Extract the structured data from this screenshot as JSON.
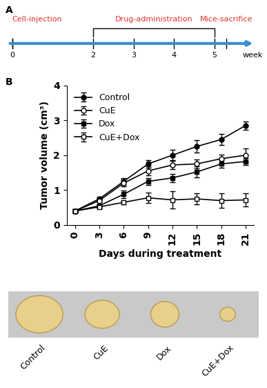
{
  "chart_data": {
    "type": "line",
    "x": [
      0,
      3,
      6,
      9,
      12,
      15,
      18,
      21
    ],
    "xlabel": "Days during treatment",
    "ylabel": "Tumor volume (cm³)",
    "xlim": [
      -1,
      22
    ],
    "xticks": [
      0,
      3,
      6,
      9,
      12,
      15,
      18,
      21
    ],
    "ylim": [
      0,
      4
    ],
    "yticks": [
      0,
      1,
      2,
      3,
      4
    ],
    "legend": "upper left",
    "series": [
      {
        "name": "Control",
        "color": "#000000",
        "marker": "circle",
        "values": [
          0.4,
          0.75,
          1.25,
          1.75,
          2.0,
          2.25,
          2.45,
          2.85
        ],
        "errors": [
          0.05,
          0.05,
          0.1,
          0.1,
          0.15,
          0.18,
          0.15,
          0.12
        ]
      },
      {
        "name": "CuE",
        "color": "#000000",
        "marker": "open_circle",
        "values": [
          0.4,
          0.7,
          1.2,
          1.55,
          1.72,
          1.75,
          1.9,
          2.0
        ],
        "errors": [
          0.05,
          0.05,
          0.1,
          0.12,
          0.12,
          0.12,
          0.12,
          0.2
        ]
      },
      {
        "name": "Dox",
        "color": "#000000",
        "marker": "square",
        "values": [
          0.4,
          0.55,
          0.88,
          1.25,
          1.35,
          1.52,
          1.75,
          1.82
        ],
        "errors": [
          0.05,
          0.05,
          0.1,
          0.1,
          0.12,
          0.15,
          0.1,
          0.1
        ]
      },
      {
        "name": "CuE+Dox",
        "color": "#000000",
        "marker": "open_square",
        "values": [
          0.4,
          0.52,
          0.65,
          0.78,
          0.72,
          0.75,
          0.7,
          0.72
        ],
        "errors": [
          0.05,
          0.05,
          0.05,
          0.15,
          0.25,
          0.15,
          0.2,
          0.18
        ]
      }
    ]
  },
  "panel_labels": [
    "A",
    "B"
  ],
  "timeline": {
    "ticks": [
      0,
      2,
      3,
      4,
      5
    ],
    "unit": "week",
    "color": "#e0302a",
    "events": [
      {
        "label": "Cell-injection",
        "at": 0
      },
      {
        "label": "Drug-administration",
        "from": 2,
        "to": 5
      },
      {
        "label": "Mice-sacrifice",
        "at": 5.3
      }
    ]
  },
  "photo_labels": [
    "Control",
    "CuE",
    "Dox",
    "CuE+Dox"
  ]
}
